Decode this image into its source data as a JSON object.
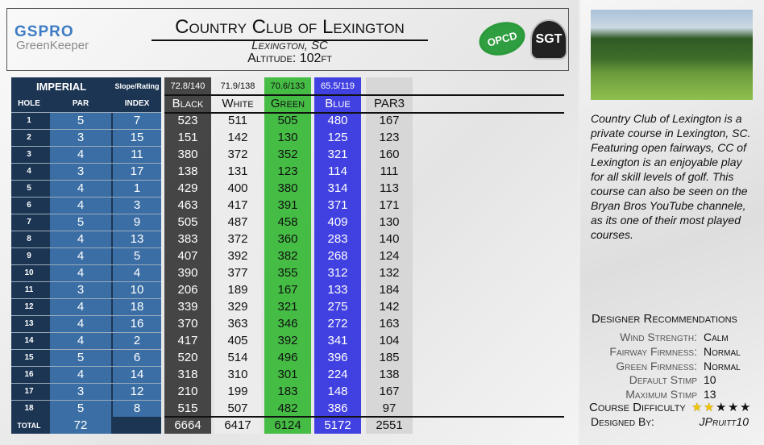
{
  "header": {
    "logo_top": "GSPRO",
    "logo_bottom": "GreenKeeper",
    "title": "Country Club of Lexington",
    "location": "Lexington, SC",
    "altitude": "Altitude: 102ft",
    "badges": [
      "OPCD",
      "SGT"
    ]
  },
  "table": {
    "units": "IMPERIAL",
    "slope_label": "Slope/Rating",
    "columns": [
      "HOLE",
      "PAR",
      "INDEX"
    ],
    "tees": [
      {
        "name": "Black",
        "rating": "72.8/140",
        "color": "#3c3c3c"
      },
      {
        "name": "White",
        "rating": "71.9/138",
        "color": "#ececec"
      },
      {
        "name": "Green",
        "rating": "70.6/133",
        "color": "#3cba3c"
      },
      {
        "name": "Blue",
        "rating": "65.5/119",
        "color": "#3838e0"
      },
      {
        "name": "PAR3",
        "color": "#d6d6d6"
      }
    ],
    "rows": [
      [
        1,
        5,
        7,
        523,
        511,
        505,
        480,
        167
      ],
      [
        2,
        3,
        15,
        151,
        142,
        130,
        125,
        123
      ],
      [
        3,
        4,
        11,
        380,
        372,
        352,
        321,
        160
      ],
      [
        4,
        3,
        17,
        138,
        131,
        123,
        114,
        111
      ],
      [
        5,
        4,
        1,
        429,
        400,
        380,
        314,
        113
      ],
      [
        6,
        4,
        3,
        463,
        417,
        391,
        371,
        171
      ],
      [
        7,
        5,
        9,
        505,
        487,
        458,
        409,
        130
      ],
      [
        8,
        4,
        13,
        383,
        372,
        360,
        283,
        140
      ],
      [
        9,
        4,
        5,
        407,
        392,
        382,
        268,
        124
      ],
      [
        10,
        4,
        4,
        390,
        377,
        355,
        312,
        132
      ],
      [
        11,
        3,
        10,
        206,
        189,
        167,
        133,
        184
      ],
      [
        12,
        4,
        18,
        339,
        329,
        321,
        275,
        142
      ],
      [
        13,
        4,
        16,
        370,
        363,
        346,
        272,
        163
      ],
      [
        14,
        4,
        2,
        417,
        405,
        392,
        341,
        104
      ],
      [
        15,
        5,
        6,
        520,
        514,
        496,
        396,
        185
      ],
      [
        16,
        4,
        14,
        318,
        310,
        301,
        224,
        138
      ],
      [
        17,
        3,
        12,
        210,
        199,
        183,
        148,
        167
      ],
      [
        18,
        5,
        8,
        515,
        507,
        482,
        386,
        97
      ]
    ],
    "total": {
      "label": "TOTAL",
      "par": 72,
      "yards": [
        6664,
        6417,
        6124,
        5172,
        2551
      ]
    }
  },
  "description": "Country Club of Lexington is a private course in Lexington, SC. Featuring open fairways, CC of Lexington is an enjoyable play for all skill levels of golf. This course can also be seen on the Bryan Bros YouTube channele, as its one of their most played courses.",
  "designer": {
    "title": "Designer Recommendations",
    "items": [
      {
        "label": "Wind Strength:",
        "value": "Calm"
      },
      {
        "label": "Fairway Firmness:",
        "value": "Normal"
      },
      {
        "label": "Green Firmness:",
        "value": "Normal"
      },
      {
        "label": "Default Stimp",
        "value": "10"
      },
      {
        "label": "Maximum Stimp",
        "value": "13"
      }
    ],
    "difficulty": {
      "label": "Course Difficulty",
      "stars": 2,
      "max": 5
    },
    "designed_by": {
      "label": "Designed By:",
      "value": "JPruitt10"
    }
  }
}
